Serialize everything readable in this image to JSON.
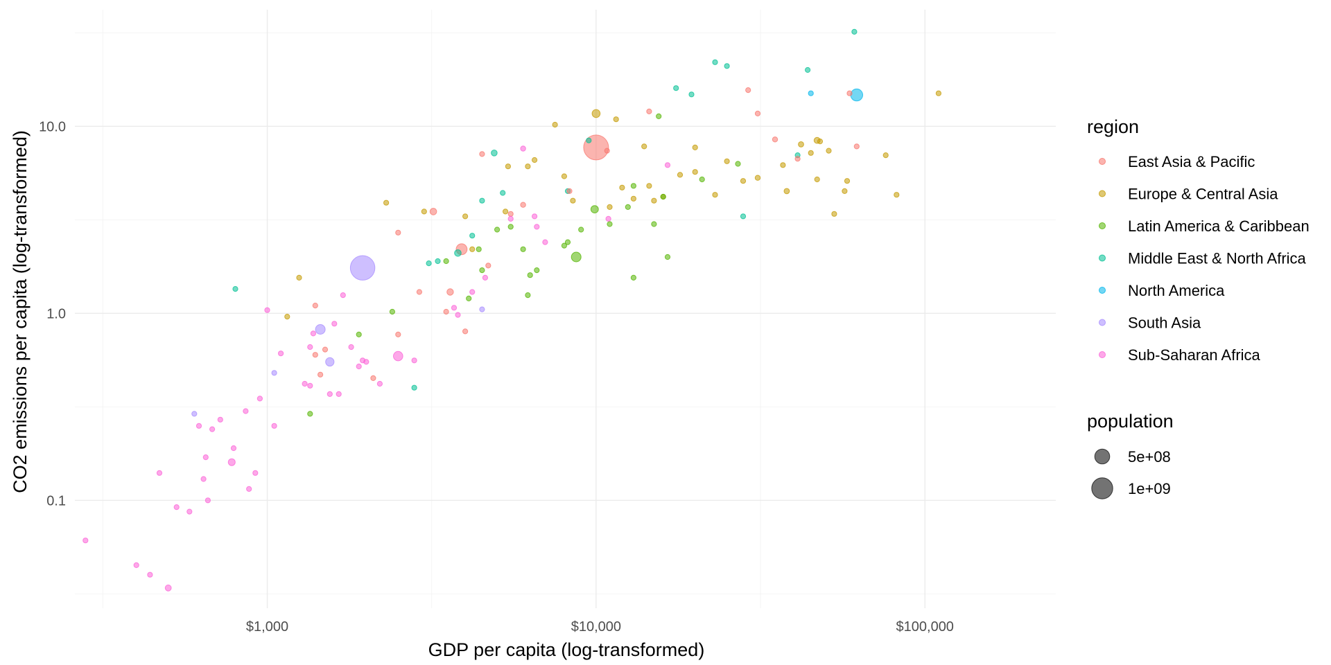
{
  "chart_data": {
    "type": "scatter",
    "title": "",
    "xlabel": "GDP per capita (log-transformed)",
    "ylabel": "CO2 emissions per capita (log-transformed)",
    "x_scale": "log10",
    "y_scale": "log10",
    "xlim": [
      260,
      250000
    ],
    "ylim": [
      0.0265,
      42
    ],
    "x_ticks": [
      {
        "value": 1000,
        "label": "$1,000"
      },
      {
        "value": 10000,
        "label": "$10,000"
      },
      {
        "value": 100000,
        "label": "$100,000"
      }
    ],
    "y_ticks": [
      {
        "value": 0.1,
        "label": "0.1"
      },
      {
        "value": 1,
        "label": "1.0"
      },
      {
        "value": 10,
        "label": "10.0"
      }
    ],
    "grid": true,
    "legend_position": "right",
    "color_legend": {
      "title": "region",
      "entries": [
        {
          "name": "East Asia & Pacific",
          "color": "#F8766D"
        },
        {
          "name": "Europe & Central Asia",
          "color": "#C49A00"
        },
        {
          "name": "Latin America & Caribbean",
          "color": "#53B400"
        },
        {
          "name": "Middle East & North Africa",
          "color": "#00C094"
        },
        {
          "name": "North America",
          "color": "#00B6EB"
        },
        {
          "name": "South Asia",
          "color": "#A58AFF"
        },
        {
          "name": "Sub-Saharan Africa",
          "color": "#FB61D7"
        }
      ]
    },
    "size_legend": {
      "title": "population",
      "entries": [
        {
          "label": "5e+08",
          "value": 500000000
        },
        {
          "label": "1e+09",
          "value": 1000000000
        }
      ]
    },
    "series": [
      {
        "name": "East Asia & Pacific",
        "points": [
          [
            10000,
            7.7,
            1400000000
          ],
          [
            3900,
            2.2,
            270000000
          ],
          [
            3200,
            3.5,
            100000000
          ],
          [
            3600,
            1.3,
            96000000
          ],
          [
            6000,
            3.8,
            60000000
          ],
          [
            1500,
            0.64,
            54000000
          ],
          [
            35000,
            8.5,
            60000000
          ],
          [
            31000,
            11.7,
            51000000
          ],
          [
            10800,
            7.4,
            33000000
          ],
          [
            1400,
            1.1,
            17000000
          ],
          [
            4500,
            7.1,
            3000000
          ],
          [
            14500,
            12.0,
            3000000
          ],
          [
            29000,
            15.6,
            5000000
          ],
          [
            59000,
            15.0,
            23000000
          ],
          [
            41000,
            6.7,
            4000000
          ],
          [
            62000,
            7.8,
            5000000
          ],
          [
            2500,
            2.7,
            7000000
          ],
          [
            2500,
            0.77,
            16000000
          ],
          [
            2900,
            1.3,
            1000000
          ],
          [
            2100,
            0.45,
            1000000
          ],
          [
            1400,
            0.6,
            1000000
          ],
          [
            4000,
            0.8,
            1000000
          ],
          [
            5500,
            3.4,
            1000000
          ],
          [
            4700,
            1.8,
            1000000
          ],
          [
            8300,
            4.5,
            1000000
          ],
          [
            1450,
            0.47,
            1000000
          ],
          [
            3500,
            1.02,
            1000000
          ]
        ]
      },
      {
        "name": "Europe & Central Asia",
        "points": [
          [
            10000,
            11.7,
            145000000
          ],
          [
            47000,
            8.4,
            82000000
          ],
          [
            42000,
            8.0,
            66000000
          ],
          [
            38000,
            4.5,
            66000000
          ],
          [
            31000,
            5.3,
            60000000
          ],
          [
            47000,
            5.2,
            46000000
          ],
          [
            12000,
            4.7,
            38000000
          ],
          [
            2300,
            3.9,
            44000000
          ],
          [
            3000,
            3.5,
            30000000
          ],
          [
            51000,
            7.4,
            17000000
          ],
          [
            48000,
            8.3,
            11000000
          ],
          [
            28000,
            5.1,
            11000000
          ],
          [
            20000,
            5.7,
            10000000
          ],
          [
            53000,
            3.4,
            10000000
          ],
          [
            45000,
            7.2,
            8000000
          ],
          [
            82000,
            4.3,
            8000000
          ],
          [
            58000,
            5.1,
            5000000
          ],
          [
            76000,
            7.0,
            5000000
          ],
          [
            110000,
            15.0,
            600000
          ],
          [
            7500,
            10.2,
            18000000
          ],
          [
            11500,
            10.9,
            8000000
          ],
          [
            14000,
            7.8,
            9000000
          ],
          [
            5400,
            6.1,
            9000000
          ],
          [
            6200,
            6.1,
            7000000
          ],
          [
            6500,
            6.6,
            2000000
          ],
          [
            18000,
            5.5,
            3000000
          ],
          [
            16000,
            4.2,
            2000000
          ],
          [
            23000,
            4.3,
            2000000
          ],
          [
            25000,
            6.5,
            4000000
          ],
          [
            14500,
            4.8,
            2000000
          ],
          [
            13000,
            4.1,
            2000000
          ],
          [
            4000,
            3.3,
            3000000
          ],
          [
            4200,
            2.2,
            2000000
          ],
          [
            1150,
            0.96,
            9000000
          ],
          [
            1250,
            1.55,
            6000000
          ],
          [
            5300,
            3.5,
            2000000
          ],
          [
            8000,
            5.4,
            2000000
          ],
          [
            11000,
            3.7,
            2000000
          ],
          [
            15000,
            4.0,
            2000000
          ],
          [
            20000,
            7.7,
            2000000
          ],
          [
            37000,
            6.2,
            2000000
          ],
          [
            57000,
            4.5,
            2000000
          ],
          [
            8500,
            4.0,
            1000000
          ]
        ]
      },
      {
        "name": "Latin America & Caribbean",
        "points": [
          [
            8700,
            2.0,
            210000000
          ],
          [
            9900,
            3.6,
            128000000
          ],
          [
            6300,
            1.6,
            49000000
          ],
          [
            6000,
            2.2,
            32000000
          ],
          [
            12500,
            3.7,
            45000000
          ],
          [
            13000,
            4.8,
            19000000
          ],
          [
            6600,
            1.7,
            17000000
          ],
          [
            3500,
            1.9,
            11000000
          ],
          [
            4100,
            1.2,
            11000000
          ],
          [
            2400,
            1.02,
            9000000
          ],
          [
            4400,
            2.2,
            4000000
          ],
          [
            5000,
            2.8,
            11000000
          ],
          [
            6200,
            1.25,
            7000000
          ],
          [
            8000,
            2.3,
            3000000
          ],
          [
            9000,
            2.8,
            2000000
          ],
          [
            15000,
            3.0,
            2000000
          ],
          [
            16500,
            2.0,
            3000000
          ],
          [
            13000,
            1.55,
            2000000
          ],
          [
            1350,
            0.29,
            11000000
          ],
          [
            1900,
            0.77,
            6000000
          ],
          [
            4500,
            1.7,
            2000000
          ],
          [
            8200,
            2.4,
            3000000
          ],
          [
            16000,
            4.2,
            2000000
          ],
          [
            21000,
            5.2,
            1000000
          ],
          [
            27000,
            6.3,
            1000000
          ],
          [
            15500,
            11.3,
            1000000
          ],
          [
            5500,
            2.9,
            1000000
          ],
          [
            11000,
            3.0,
            1000000
          ]
        ]
      },
      {
        "name": "Middle East & North Africa",
        "points": [
          [
            4900,
            7.2,
            80000000
          ],
          [
            3800,
            2.1,
            100000000
          ],
          [
            3300,
            1.9,
            41000000
          ],
          [
            3100,
            1.85,
            35000000
          ],
          [
            19500,
            14.8,
            33000000
          ],
          [
            4500,
            4.0,
            30000000
          ],
          [
            5200,
            4.4,
            9000000
          ],
          [
            800,
            1.35,
            28000000
          ],
          [
            4200,
            2.6,
            10000000
          ],
          [
            23000,
            22.0,
            4000000
          ],
          [
            25000,
            21.0,
            4000000
          ],
          [
            44000,
            20.0,
            9000000
          ],
          [
            61000,
            32.0,
            2000000
          ],
          [
            17500,
            16.0,
            2000000
          ],
          [
            28000,
            3.3,
            2000000
          ],
          [
            2800,
            0.4,
            2000000
          ],
          [
            8200,
            4.5,
            4000000
          ],
          [
            9500,
            8.4,
            5000000
          ],
          [
            41000,
            7.0,
            5000000
          ]
        ]
      },
      {
        "name": "North America",
        "points": [
          [
            62000,
            14.7,
            330000000
          ],
          [
            45000,
            15.0,
            38000000
          ]
        ]
      },
      {
        "name": "South Asia",
        "points": [
          [
            1950,
            1.75,
            1350000000
          ],
          [
            1450,
            0.82,
            210000000
          ],
          [
            1550,
            0.55,
            160000000
          ],
          [
            1050,
            0.48,
            30000000
          ],
          [
            600,
            0.29,
            38000000
          ],
          [
            4500,
            1.05,
            20000000
          ]
        ]
      },
      {
        "name": "Sub-Saharan Africa",
        "points": [
          [
            2500,
            0.59,
            200000000
          ],
          [
            780,
            0.16,
            110000000
          ],
          [
            1650,
            0.37,
            55000000
          ],
          [
            1900,
            0.52,
            51000000
          ],
          [
            500,
            0.034,
            85000000
          ],
          [
            6000,
            7.6,
            58000000
          ],
          [
            1950,
            0.56,
            43000000
          ],
          [
            2000,
            0.55,
            27000000
          ],
          [
            2200,
            0.42,
            30000000
          ],
          [
            920,
            0.14,
            42000000
          ],
          [
            790,
            0.19,
            26000000
          ],
          [
            620,
            0.25,
            28000000
          ],
          [
            1050,
            0.25,
            26000000
          ],
          [
            470,
            0.14,
            20000000
          ],
          [
            530,
            0.092,
            20000000
          ],
          [
            580,
            0.087,
            18000000
          ],
          [
            660,
            0.1,
            15000000
          ],
          [
            440,
            0.04,
            12000000
          ],
          [
            400,
            0.045,
            4000000
          ],
          [
            280,
            0.061,
            11000000
          ],
          [
            1300,
            0.42,
            16000000
          ],
          [
            1350,
            0.66,
            11000000
          ],
          [
            1380,
            0.78,
            5000000
          ],
          [
            1550,
            0.37,
            8000000
          ],
          [
            720,
            0.27,
            15000000
          ],
          [
            640,
            0.13,
            8000000
          ],
          [
            680,
            0.24,
            3000000
          ],
          [
            650,
            0.17,
            3000000
          ],
          [
            950,
            0.35,
            5000000
          ],
          [
            1100,
            0.61,
            3000000
          ],
          [
            1000,
            1.04,
            4000000
          ],
          [
            1700,
            1.25,
            4000000
          ],
          [
            1600,
            0.88,
            3000000
          ],
          [
            860,
            0.3,
            3000000
          ],
          [
            880,
            0.115,
            3000000
          ],
          [
            1350,
            0.41,
            2000000
          ],
          [
            1800,
            0.66,
            2000000
          ],
          [
            2800,
            0.56,
            2000000
          ],
          [
            3700,
            1.07,
            2000000
          ],
          [
            3800,
            0.98,
            2000000
          ],
          [
            6500,
            3.3,
            3000000
          ],
          [
            6600,
            2.9,
            2000000
          ],
          [
            7000,
            2.4,
            2000000
          ],
          [
            10900,
            3.2,
            1000000
          ],
          [
            4600,
            1.55,
            1000000
          ],
          [
            4200,
            1.3,
            1000000
          ],
          [
            16500,
            6.2,
            1000000
          ],
          [
            5500,
            3.2,
            1000000
          ]
        ]
      }
    ]
  }
}
